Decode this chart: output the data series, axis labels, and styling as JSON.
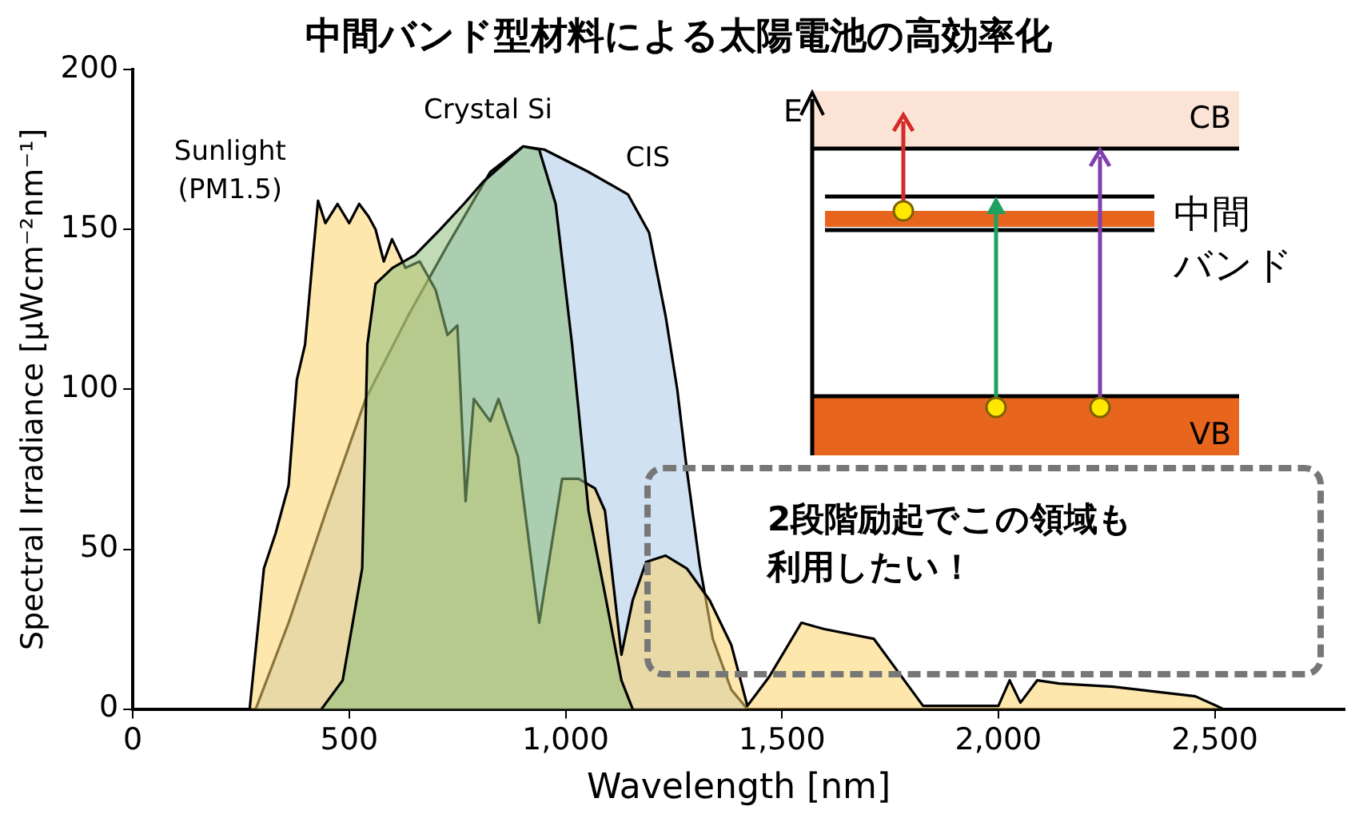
{
  "chart_data": {
    "type": "area",
    "title": "中間バンド型材料による太陽電池の高効率化",
    "xlabel": "Wavelength [nm]",
    "ylabel": "Spectral Irradiance [μWcm⁻²nm⁻¹]",
    "xlim": [
      0,
      2800
    ],
    "xticks": [
      0,
      500,
      {
        "value": 1000,
        "label": "1,000"
      },
      {
        "value": 1500,
        "label": "1,500"
      },
      {
        "value": 2000,
        "label": "2,000"
      },
      {
        "value": 2500,
        "label": "2,500"
      }
    ],
    "ylim": [
      0,
      200
    ],
    "yticks": [
      0,
      50,
      100,
      150,
      200
    ],
    "grid": false,
    "legend": false,
    "series": [
      {
        "name": "CIS",
        "color": "#a9c8e8",
        "x": [
          284,
          360,
          447,
          538,
          636,
          727,
          826,
          902,
          951,
          1053,
          1144,
          1193,
          1231,
          1258,
          1280,
          1310,
          1340,
          1383,
          1420
        ],
        "values": [
          0,
          27,
          62,
          97,
          123,
          145,
          168,
          176,
          175,
          168,
          161,
          149,
          123,
          100,
          75,
          45,
          22,
          6,
          0
        ]
      },
      {
        "name": "Sunlight (PM1.5)",
        "color": "#fbd46a",
        "x": [
          270,
          303,
          330,
          360,
          379,
          398,
          415,
          428,
          445,
          473,
          500,
          523,
          545,
          561,
          580,
          599,
          630,
          663,
          700,
          727,
          750,
          769,
          788,
          826,
          845,
          890,
          939,
          992,
          1030,
          1068,
          1091,
          1129,
          1155,
          1186,
          1231,
          1280,
          1333,
          1383,
          1420,
          1470,
          1545,
          1598,
          1712,
          1761,
          1826,
          2000,
          2026,
          2051,
          2090,
          2140,
          2265,
          2455,
          2520
        ],
        "values": [
          0,
          44,
          55,
          70,
          103,
          114,
          140,
          159,
          152,
          158,
          152,
          158,
          154,
          150,
          140,
          147,
          138,
          140,
          131,
          117,
          120,
          65,
          97,
          90,
          97,
          79,
          27,
          72,
          72,
          69,
          62,
          17,
          34,
          46,
          48,
          44,
          34,
          20,
          1,
          10,
          27,
          25,
          22,
          13,
          1,
          1,
          9,
          2,
          9,
          8,
          7,
          4,
          0
        ]
      },
      {
        "name": "Crystal Si",
        "color": "#8dbd7a",
        "x": [
          436,
          485,
          530,
          542,
          561,
          600,
          652,
          710,
          765,
          810,
          852,
          902,
          939,
          977,
          1015,
          1053,
          1091,
          1129,
          1155
        ],
        "values": [
          0,
          9,
          44,
          114,
          133,
          138,
          142,
          150,
          158,
          165,
          170,
          176,
          175,
          158,
          114,
          62,
          36,
          9,
          0
        ]
      }
    ],
    "annotations": [
      "E",
      "CB",
      "VB",
      "中間バンド",
      "2段階励起でこの領域も利用したい！"
    ]
  }
}
